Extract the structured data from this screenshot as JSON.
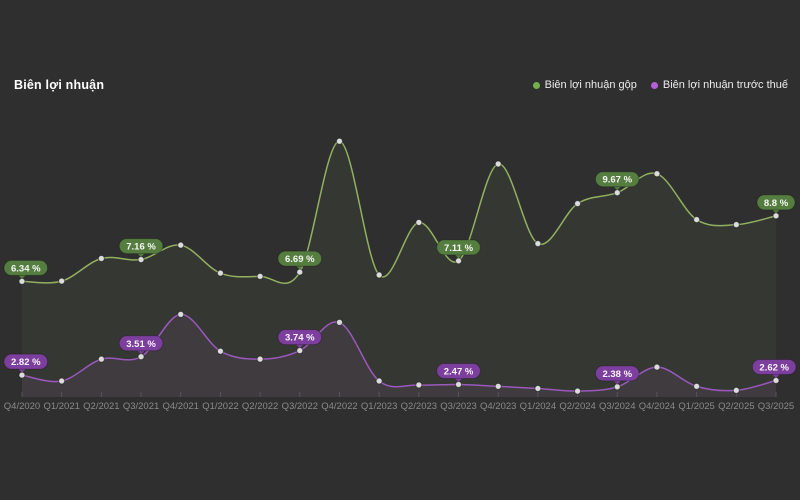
{
  "header": {
    "title": "Biên lợi nhuận"
  },
  "legend": [
    {
      "key": "gross",
      "label": "Biên lợi nhuận gộp",
      "dot_color": "#74b04a"
    },
    {
      "key": "pretax",
      "label": "Biên lợi nhuận trước thuế",
      "dot_color": "#b55fd6"
    }
  ],
  "chart_data": {
    "type": "line",
    "title": "Biên lợi nhuận",
    "xlabel": "",
    "ylabel": "",
    "ylim": [
      2,
      12.4
    ],
    "grid": false,
    "legend_position": "top-right",
    "marker_color": "#dcdcdc",
    "axis": {
      "tick_color": "#565656",
      "label_color": "#8a8a8a"
    },
    "categories": [
      "Q4/2020",
      "Q1/2021",
      "Q2/2021",
      "Q3/2021",
      "Q4/2021",
      "Q1/2022",
      "Q2/2022",
      "Q3/2022",
      "Q4/2022",
      "Q1/2023",
      "Q2/2023",
      "Q3/2023",
      "Q4/2023",
      "Q1/2024",
      "Q2/2024",
      "Q3/2024",
      "Q4/2024",
      "Q1/2025",
      "Q2/2025",
      "Q3/2025"
    ],
    "series": [
      {
        "key": "gross",
        "name": "Biên lợi nhuận gộp",
        "color": "#92b060",
        "fill": "rgba(146,176,96,0.07)",
        "badge_color": "#547d3f",
        "values": [
          6.34,
          6.35,
          7.2,
          7.16,
          7.7,
          6.65,
          6.53,
          6.69,
          11.6,
          6.58,
          8.55,
          7.11,
          10.75,
          7.76,
          9.26,
          9.67,
          10.38,
          8.66,
          8.47,
          8.8
        ],
        "labels": [
          {
            "index": 0,
            "text": "6.34 %"
          },
          {
            "index": 3,
            "text": "7.16 %"
          },
          {
            "index": 7,
            "text": "6.69 %"
          },
          {
            "index": 11,
            "text": "7.11 %"
          },
          {
            "index": 15,
            "text": "9.67 %"
          },
          {
            "index": 19,
            "text": "8.8 %"
          }
        ]
      },
      {
        "key": "pretax",
        "name": "Biên lợi nhuận trước thuế",
        "color": "#9a59bd",
        "fill": "rgba(160,95,190,0.10)",
        "badge_color": "#7d3f9d",
        "values": [
          2.82,
          2.6,
          3.42,
          3.51,
          5.1,
          3.72,
          3.42,
          3.74,
          4.8,
          2.6,
          2.45,
          2.47,
          2.4,
          2.32,
          2.22,
          2.38,
          3.12,
          2.4,
          2.25,
          2.62
        ],
        "labels": [
          {
            "index": 0,
            "text": "2.82 %"
          },
          {
            "index": 3,
            "text": "3.51 %"
          },
          {
            "index": 7,
            "text": "3.74 %"
          },
          {
            "index": 11,
            "text": "2.47 %"
          },
          {
            "index": 15,
            "text": "2.38 %"
          },
          {
            "index": 19,
            "text": "2.62 %"
          }
        ]
      }
    ]
  }
}
